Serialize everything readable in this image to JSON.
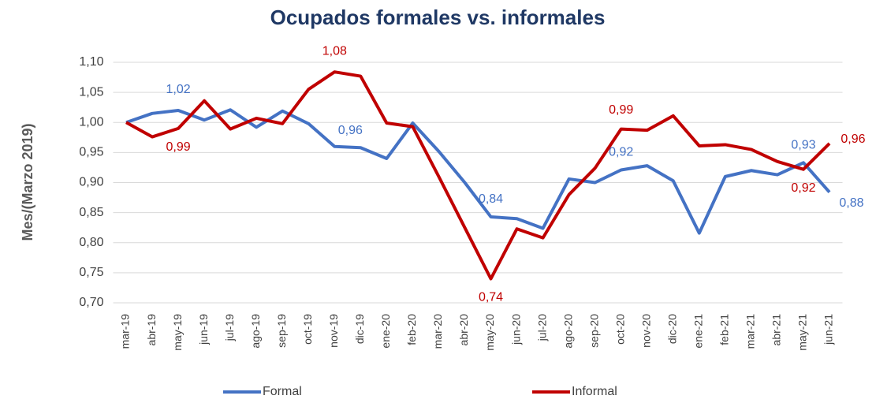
{
  "chart_data": {
    "type": "line",
    "title": "Ocupados formales vs. informales",
    "y_label": "Mes/(Marzo 2019)",
    "categories": [
      "mar-19",
      "abr-19",
      "may-19",
      "jun-19",
      "jul-19",
      "ago-19",
      "sep-19",
      "oct-19",
      "nov-19",
      "dic-19",
      "ene-20",
      "feb-20",
      "mar-20",
      "abr-20",
      "may-20",
      "jun-20",
      "jul-20",
      "ago-20",
      "sep-20",
      "oct-20",
      "nov-20",
      "dic-20",
      "ene-21",
      "feb-21",
      "mar-21",
      "abr-21",
      "may-21",
      "jun-21"
    ],
    "series": [
      {
        "name": "Formal",
        "color": "#4472c4",
        "values": [
          1.0,
          1.015,
          1.02,
          1.004,
          1.021,
          0.992,
          1.019,
          0.998,
          0.96,
          0.958,
          0.94,
          0.999,
          0.952,
          0.9,
          0.843,
          0.84,
          0.824,
          0.906,
          0.9,
          0.921,
          0.928,
          0.903,
          0.816,
          0.91,
          0.92,
          0.913,
          0.933,
          0.884
        ],
        "value_labels": [
          null,
          null,
          "1,02",
          null,
          null,
          null,
          null,
          null,
          "0,96",
          null,
          null,
          null,
          null,
          null,
          "0,84",
          null,
          null,
          null,
          null,
          "0,92",
          null,
          null,
          null,
          null,
          null,
          null,
          "0,93",
          "0,88"
        ]
      },
      {
        "name": "Informal",
        "color": "#c00000",
        "values": [
          1.0,
          0.976,
          0.99,
          1.036,
          0.989,
          1.007,
          0.998,
          1.055,
          1.084,
          1.077,
          0.999,
          0.993,
          0.91,
          0.825,
          0.74,
          0.823,
          0.808,
          0.88,
          0.924,
          0.989,
          0.987,
          1.011,
          0.961,
          0.963,
          0.955,
          0.935,
          0.922,
          0.965
        ],
        "value_labels": [
          null,
          null,
          "0,99",
          null,
          null,
          null,
          null,
          null,
          "1,08",
          null,
          null,
          null,
          null,
          null,
          "0,74",
          null,
          null,
          null,
          null,
          "0,99",
          null,
          null,
          null,
          null,
          null,
          null,
          "0,92",
          "0,96"
        ]
      }
    ],
    "ylim": [
      0.7,
      1.1
    ],
    "yticks": [
      {
        "value": 0.7,
        "label": "0,70"
      },
      {
        "value": 0.75,
        "label": "0,75"
      },
      {
        "value": 0.8,
        "label": "0,80"
      },
      {
        "value": 0.85,
        "label": "0,85"
      },
      {
        "value": 0.9,
        "label": "0,90"
      },
      {
        "value": 0.95,
        "label": "0,95"
      },
      {
        "value": 1.0,
        "label": "1,00"
      },
      {
        "value": 1.05,
        "label": "1,05"
      },
      {
        "value": 1.1,
        "label": "1,10"
      }
    ],
    "grid": true,
    "legend": "bottom"
  }
}
